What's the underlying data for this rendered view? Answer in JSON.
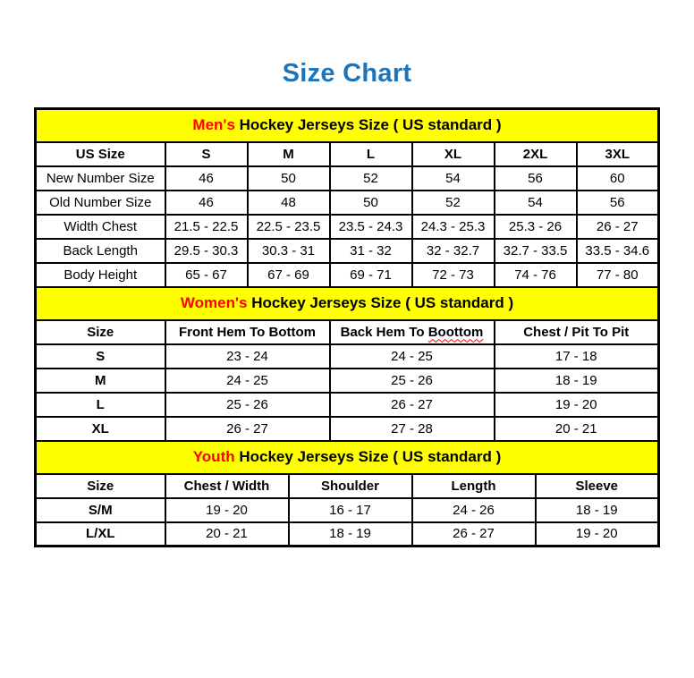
{
  "page_title": "Size Chart",
  "colors": {
    "title_blue": "#1b75bc",
    "band_yellow": "#ffff00",
    "accent_red": "#ff0000",
    "border_black": "#000000"
  },
  "mens": {
    "title_accent": "Men's",
    "title_rest": " Hockey Jerseys Size ( US standard )",
    "columns": [
      "US Size",
      "S",
      "M",
      "L",
      "XL",
      "2XL",
      "3XL"
    ],
    "rows": [
      {
        "label": "New Number Size",
        "values": [
          "46",
          "50",
          "52",
          "54",
          "56",
          "60"
        ]
      },
      {
        "label": "Old Number Size",
        "values": [
          "46",
          "48",
          "50",
          "52",
          "54",
          "56"
        ]
      },
      {
        "label": "Width Chest",
        "values": [
          "21.5 - 22.5",
          "22.5 - 23.5",
          "23.5 - 24.3",
          "24.3 - 25.3",
          "25.3 - 26",
          "26 - 27"
        ]
      },
      {
        "label": "Back Length",
        "values": [
          "29.5 - 30.3",
          "30.3 - 31",
          "31 - 32",
          "32 - 32.7",
          "32.7 - 33.5",
          "33.5 - 34.6"
        ]
      },
      {
        "label": "Body Height",
        "values": [
          "65 - 67",
          "67 - 69",
          "69 - 71",
          "72 - 73",
          "74 - 76",
          "77 - 80"
        ]
      }
    ]
  },
  "womens": {
    "title_accent": "Women's",
    "title_rest": " Hockey Jerseys Size ( US standard )",
    "columns": [
      "Size",
      "Front Hem To Bottom",
      "Back Hem To Boottom",
      "Chest / Pit To Pit"
    ],
    "back_hem_parts": {
      "prefix": "Back Hem To ",
      "misspelled": "Boottom"
    },
    "rows": [
      {
        "label": "S",
        "values": [
          "23 - 24",
          "24 - 25",
          "17 - 18"
        ]
      },
      {
        "label": "M",
        "values": [
          "24 - 25",
          "25 - 26",
          "18 - 19"
        ]
      },
      {
        "label": "L",
        "values": [
          "25 - 26",
          "26 - 27",
          "19 - 20"
        ]
      },
      {
        "label": "XL",
        "values": [
          "26 - 27",
          "27 - 28",
          "20 - 21"
        ]
      }
    ]
  },
  "youth": {
    "title_accent": "Youth",
    "title_rest": " Hockey Jerseys Size ( US standard )",
    "columns": [
      "Size",
      "Chest / Width",
      "Shoulder",
      "Length",
      "Sleeve"
    ],
    "rows": [
      {
        "label": "S/M",
        "values": [
          "19 - 20",
          "16 - 17",
          "24 - 26",
          "18 - 19"
        ]
      },
      {
        "label": "L/XL",
        "values": [
          "20 - 21",
          "18 - 19",
          "26 - 27",
          "19 - 20"
        ]
      }
    ]
  }
}
